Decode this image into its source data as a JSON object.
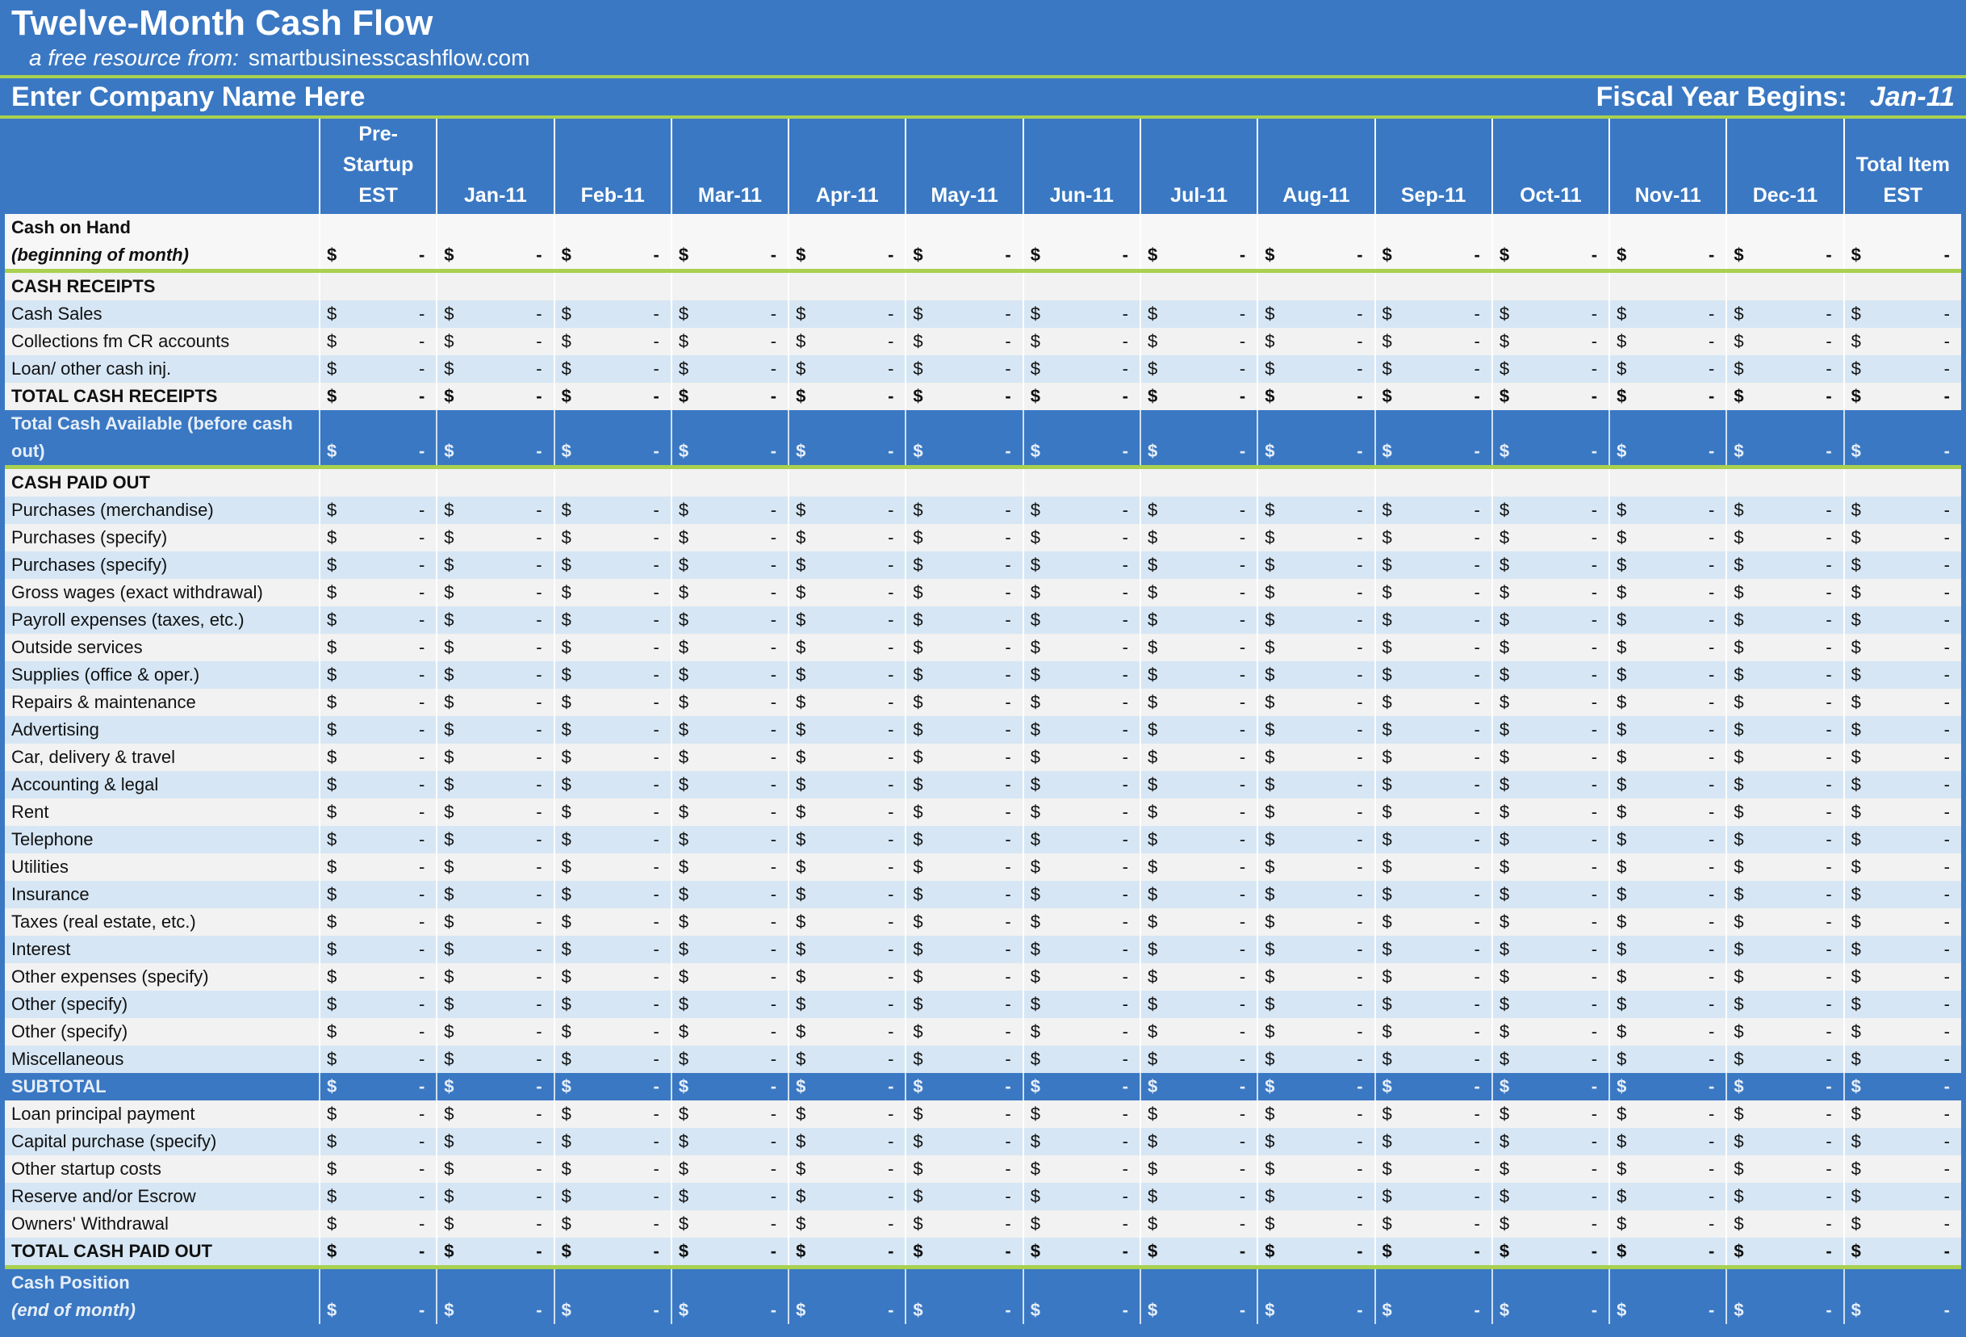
{
  "header": {
    "title": "Twelve-Month Cash Flow",
    "subtitle_prefix": "a free resource from:",
    "subtitle_site": "smartbusinesscashflow.com"
  },
  "company": {
    "name": "Enter Company Name Here",
    "fiscal_year_label": "Fiscal Year Begins:",
    "fiscal_year_value": "Jan-11"
  },
  "table": {
    "currency": "$",
    "columns": [
      [
        "Pre-",
        "Startup",
        "EST"
      ],
      [
        "Jan-11"
      ],
      [
        "Feb-11"
      ],
      [
        "Mar-11"
      ],
      [
        "Apr-11"
      ],
      [
        "May-11"
      ],
      [
        "Jun-11"
      ],
      [
        "Jul-11"
      ],
      [
        "Aug-11"
      ],
      [
        "Sep-11"
      ],
      [
        "Oct-11"
      ],
      [
        "Nov-11"
      ],
      [
        "Dec-11"
      ],
      [
        "Total Item",
        "EST"
      ]
    ],
    "rows": [
      {
        "label": "Cash on Hand",
        "sublabel": "(beginning of month)",
        "fill": "white",
        "bold": true,
        "divider": true,
        "values": [
          "-",
          "-",
          "-",
          "-",
          "-",
          "-",
          "-",
          "-",
          "-",
          "-",
          "-",
          "-",
          "-",
          "-"
        ]
      },
      {
        "label": "CASH RECEIPTS",
        "fill": "gray",
        "bold": true
      },
      {
        "label": "Cash Sales",
        "fill": "blue",
        "values": [
          "-",
          "-",
          "-",
          "-",
          "-",
          "-",
          "-",
          "-",
          "-",
          "-",
          "-",
          "-",
          "-",
          "-"
        ]
      },
      {
        "label": "Collections fm CR accounts",
        "fill": "gray",
        "values": [
          "-",
          "-",
          "-",
          "-",
          "-",
          "-",
          "-",
          "-",
          "-",
          "-",
          "-",
          "-",
          "-",
          "-"
        ]
      },
      {
        "label": "Loan/ other cash inj.",
        "fill": "blue",
        "values": [
          "-",
          "-",
          "-",
          "-",
          "-",
          "-",
          "-",
          "-",
          "-",
          "-",
          "-",
          "-",
          "-",
          "-"
        ]
      },
      {
        "label": "TOTAL CASH RECEIPTS",
        "fill": "gray",
        "bold": true,
        "values": [
          "-",
          "-",
          "-",
          "-",
          "-",
          "-",
          "-",
          "-",
          "-",
          "-",
          "-",
          "-",
          "-",
          "-"
        ]
      },
      {
        "label": "Total Cash Available (before cash out)",
        "fill": "dark",
        "bold": true,
        "divider": true,
        "values": [
          "-",
          "-",
          "-",
          "-",
          "-",
          "-",
          "-",
          "-",
          "-",
          "-",
          "-",
          "-",
          "-",
          "-"
        ]
      },
      {
        "label": "CASH PAID OUT",
        "fill": "gray",
        "bold": true
      },
      {
        "label": "Purchases (merchandise)",
        "fill": "blue",
        "values": [
          "-",
          "-",
          "-",
          "-",
          "-",
          "-",
          "-",
          "-",
          "-",
          "-",
          "-",
          "-",
          "-",
          "-"
        ]
      },
      {
        "label": "Purchases (specify)",
        "fill": "gray",
        "values": [
          "-",
          "-",
          "-",
          "-",
          "-",
          "-",
          "-",
          "-",
          "-",
          "-",
          "-",
          "-",
          "-",
          "-"
        ]
      },
      {
        "label": "Purchases (specify)",
        "fill": "blue",
        "values": [
          "-",
          "-",
          "-",
          "-",
          "-",
          "-",
          "-",
          "-",
          "-",
          "-",
          "-",
          "-",
          "-",
          "-"
        ]
      },
      {
        "label": "Gross wages (exact withdrawal)",
        "fill": "gray",
        "values": [
          "-",
          "-",
          "-",
          "-",
          "-",
          "-",
          "-",
          "-",
          "-",
          "-",
          "-",
          "-",
          "-",
          "-"
        ]
      },
      {
        "label": "Payroll expenses (taxes, etc.)",
        "fill": "blue",
        "values": [
          "-",
          "-",
          "-",
          "-",
          "-",
          "-",
          "-",
          "-",
          "-",
          "-",
          "-",
          "-",
          "-",
          "-"
        ]
      },
      {
        "label": "Outside services",
        "fill": "gray",
        "values": [
          "-",
          "-",
          "-",
          "-",
          "-",
          "-",
          "-",
          "-",
          "-",
          "-",
          "-",
          "-",
          "-",
          "-"
        ]
      },
      {
        "label": "Supplies (office & oper.)",
        "fill": "blue",
        "values": [
          "-",
          "-",
          "-",
          "-",
          "-",
          "-",
          "-",
          "-",
          "-",
          "-",
          "-",
          "-",
          "-",
          "-"
        ]
      },
      {
        "label": "Repairs & maintenance",
        "fill": "gray",
        "values": [
          "-",
          "-",
          "-",
          "-",
          "-",
          "-",
          "-",
          "-",
          "-",
          "-",
          "-",
          "-",
          "-",
          "-"
        ]
      },
      {
        "label": "Advertising",
        "fill": "blue",
        "values": [
          "-",
          "-",
          "-",
          "-",
          "-",
          "-",
          "-",
          "-",
          "-",
          "-",
          "-",
          "-",
          "-",
          "-"
        ]
      },
      {
        "label": "Car, delivery & travel",
        "fill": "gray",
        "values": [
          "-",
          "-",
          "-",
          "-",
          "-",
          "-",
          "-",
          "-",
          "-",
          "-",
          "-",
          "-",
          "-",
          "-"
        ]
      },
      {
        "label": "Accounting & legal",
        "fill": "blue",
        "values": [
          "-",
          "-",
          "-",
          "-",
          "-",
          "-",
          "-",
          "-",
          "-",
          "-",
          "-",
          "-",
          "-",
          "-"
        ]
      },
      {
        "label": "Rent",
        "fill": "gray",
        "values": [
          "-",
          "-",
          "-",
          "-",
          "-",
          "-",
          "-",
          "-",
          "-",
          "-",
          "-",
          "-",
          "-",
          "-"
        ]
      },
      {
        "label": "Telephone",
        "fill": "blue",
        "values": [
          "-",
          "-",
          "-",
          "-",
          "-",
          "-",
          "-",
          "-",
          "-",
          "-",
          "-",
          "-",
          "-",
          "-"
        ]
      },
      {
        "label": "Utilities",
        "fill": "gray",
        "values": [
          "-",
          "-",
          "-",
          "-",
          "-",
          "-",
          "-",
          "-",
          "-",
          "-",
          "-",
          "-",
          "-",
          "-"
        ]
      },
      {
        "label": "Insurance",
        "fill": "blue",
        "values": [
          "-",
          "-",
          "-",
          "-",
          "-",
          "-",
          "-",
          "-",
          "-",
          "-",
          "-",
          "-",
          "-",
          "-"
        ]
      },
      {
        "label": "Taxes (real estate, etc.)",
        "fill": "gray",
        "values": [
          "-",
          "-",
          "-",
          "-",
          "-",
          "-",
          "-",
          "-",
          "-",
          "-",
          "-",
          "-",
          "-",
          "-"
        ]
      },
      {
        "label": "Interest",
        "fill": "blue",
        "values": [
          "-",
          "-",
          "-",
          "-",
          "-",
          "-",
          "-",
          "-",
          "-",
          "-",
          "-",
          "-",
          "-",
          "-"
        ]
      },
      {
        "label": "Other expenses (specify)",
        "fill": "gray",
        "values": [
          "-",
          "-",
          "-",
          "-",
          "-",
          "-",
          "-",
          "-",
          "-",
          "-",
          "-",
          "-",
          "-",
          "-"
        ]
      },
      {
        "label": "Other (specify)",
        "fill": "blue",
        "values": [
          "-",
          "-",
          "-",
          "-",
          "-",
          "-",
          "-",
          "-",
          "-",
          "-",
          "-",
          "-",
          "-",
          "-"
        ]
      },
      {
        "label": "Other (specify)",
        "fill": "gray",
        "values": [
          "-",
          "-",
          "-",
          "-",
          "-",
          "-",
          "-",
          "-",
          "-",
          "-",
          "-",
          "-",
          "-",
          "-"
        ]
      },
      {
        "label": "Miscellaneous",
        "fill": "blue",
        "values": [
          "-",
          "-",
          "-",
          "-",
          "-",
          "-",
          "-",
          "-",
          "-",
          "-",
          "-",
          "-",
          "-",
          "-"
        ]
      },
      {
        "label": "SUBTOTAL",
        "fill": "dark",
        "bold": true,
        "values": [
          "-",
          "-",
          "-",
          "-",
          "-",
          "-",
          "-",
          "-",
          "-",
          "-",
          "-",
          "-",
          "-",
          "-"
        ]
      },
      {
        "label": "Loan principal payment",
        "fill": "gray",
        "values": [
          "-",
          "-",
          "-",
          "-",
          "-",
          "-",
          "-",
          "-",
          "-",
          "-",
          "-",
          "-",
          "-",
          "-"
        ]
      },
      {
        "label": "Capital purchase (specify)",
        "fill": "blue",
        "values": [
          "-",
          "-",
          "-",
          "-",
          "-",
          "-",
          "-",
          "-",
          "-",
          "-",
          "-",
          "-",
          "-",
          "-"
        ]
      },
      {
        "label": "Other startup costs",
        "fill": "gray",
        "values": [
          "-",
          "-",
          "-",
          "-",
          "-",
          "-",
          "-",
          "-",
          "-",
          "-",
          "-",
          "-",
          "-",
          "-"
        ]
      },
      {
        "label": "Reserve and/or Escrow",
        "fill": "blue",
        "values": [
          "-",
          "-",
          "-",
          "-",
          "-",
          "-",
          "-",
          "-",
          "-",
          "-",
          "-",
          "-",
          "-",
          "-"
        ]
      },
      {
        "label": "Owners' Withdrawal",
        "fill": "gray",
        "values": [
          "-",
          "-",
          "-",
          "-",
          "-",
          "-",
          "-",
          "-",
          "-",
          "-",
          "-",
          "-",
          "-",
          "-"
        ]
      },
      {
        "label": "TOTAL CASH PAID OUT",
        "fill": "blue",
        "bold": true,
        "divider": true,
        "values": [
          "-",
          "-",
          "-",
          "-",
          "-",
          "-",
          "-",
          "-",
          "-",
          "-",
          "-",
          "-",
          "-",
          "-"
        ]
      },
      {
        "label": "Cash Position",
        "sublabel": "(end of month)",
        "fill": "dark",
        "bold": true,
        "values": [
          "-",
          "-",
          "-",
          "-",
          "-",
          "-",
          "-",
          "-",
          "-",
          "-",
          "-",
          "-",
          "-",
          "-"
        ]
      }
    ]
  }
}
